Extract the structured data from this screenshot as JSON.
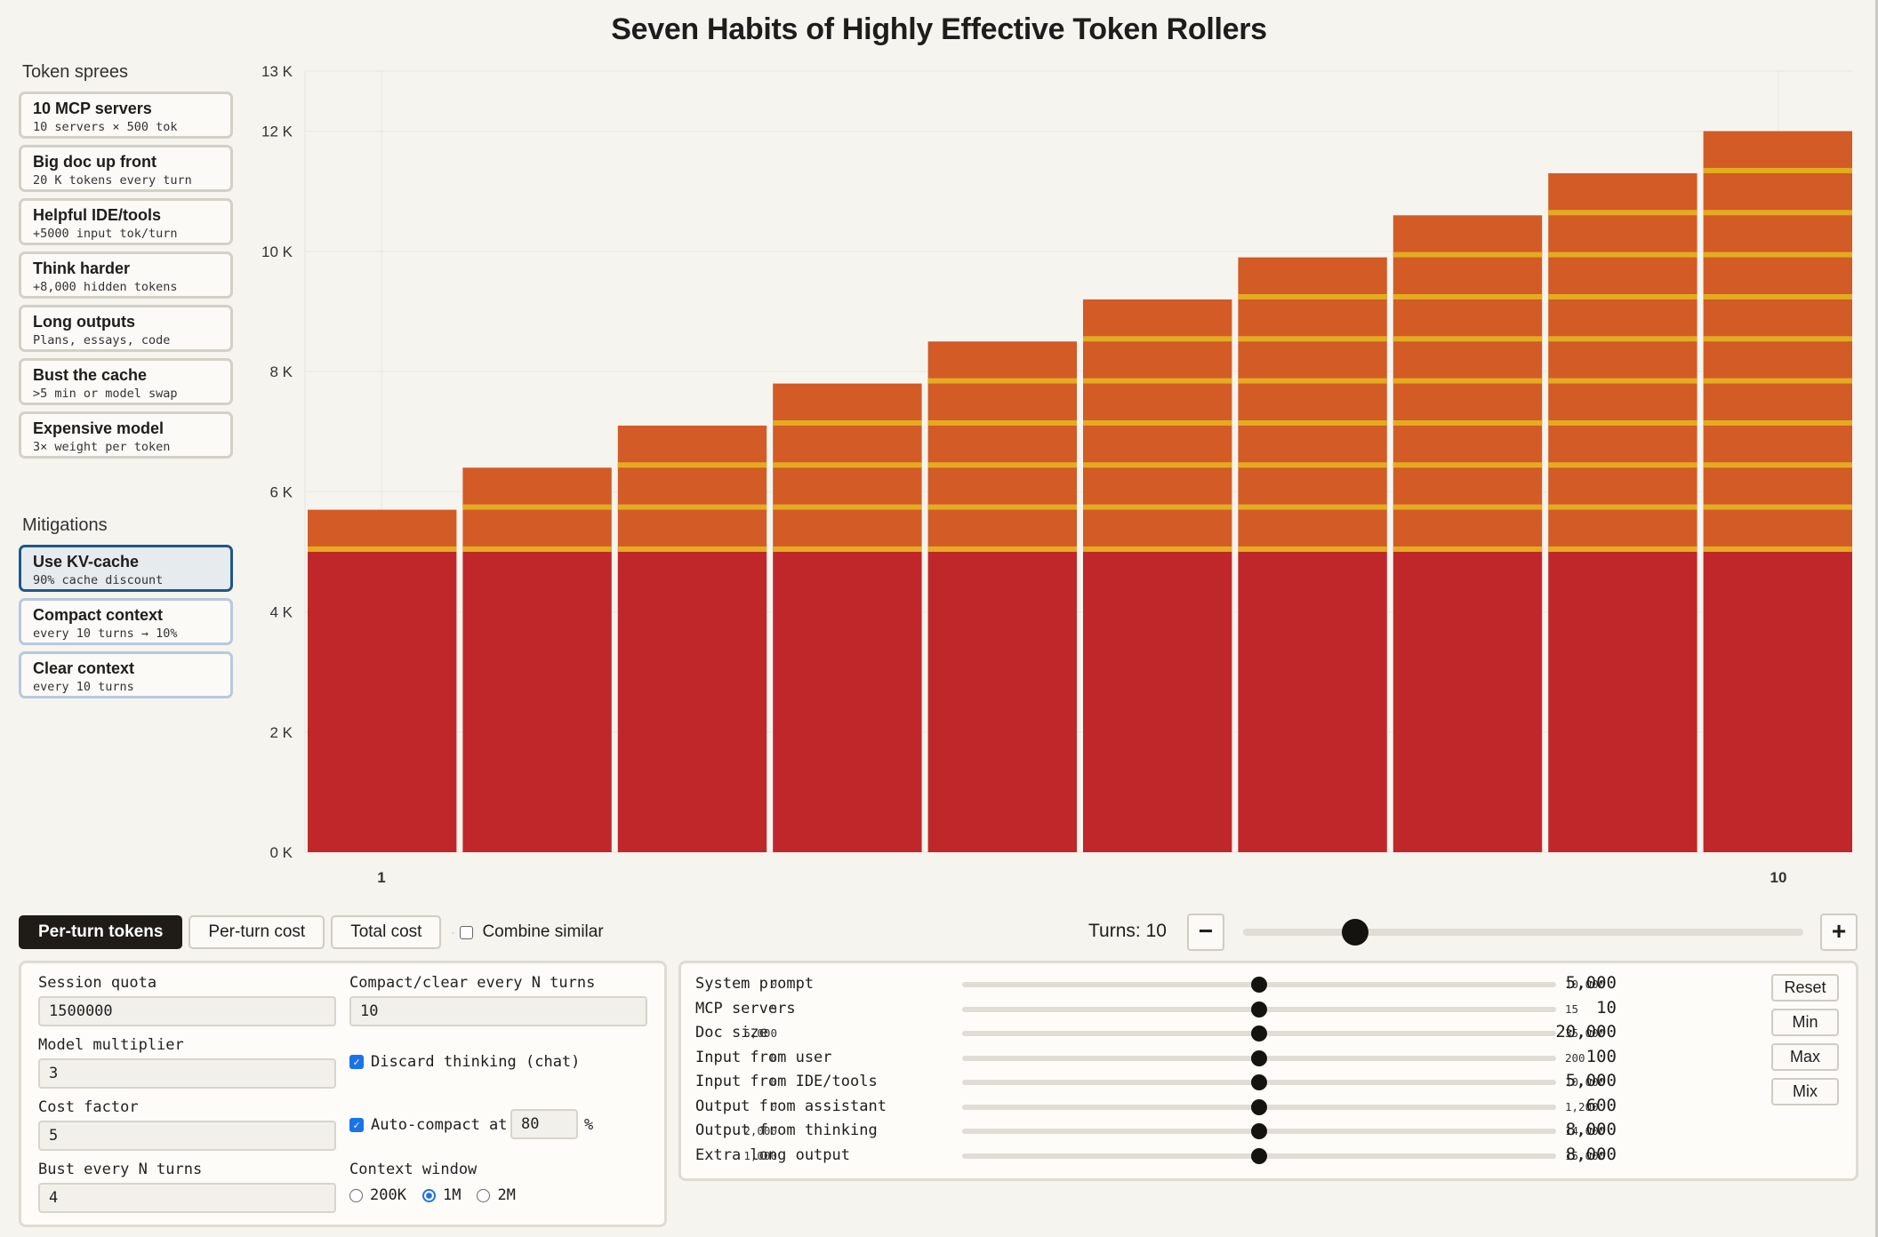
{
  "title": "Seven Habits of Highly Effective Token Rollers",
  "sidebar": {
    "sprees_heading": "Token sprees",
    "sprees": [
      {
        "title": "10 MCP servers",
        "subtitle": "10 servers × 500 tok"
      },
      {
        "title": "Big doc up front",
        "subtitle": "20 K tokens every turn"
      },
      {
        "title": "Helpful IDE/tools",
        "subtitle": "+5000 input tok/turn"
      },
      {
        "title": "Think harder",
        "subtitle": "+8,000 hidden tokens"
      },
      {
        "title": "Long outputs",
        "subtitle": "Plans, essays, code"
      },
      {
        "title": "Bust the cache",
        "subtitle": ">5 min or model swap"
      },
      {
        "title": "Expensive model",
        "subtitle": "3× weight per token"
      }
    ],
    "mitigations_heading": "Mitigations",
    "mitigations": [
      {
        "title": "Use KV-cache",
        "subtitle": "90% cache discount",
        "active": true
      },
      {
        "title": "Compact context",
        "subtitle": "every 10 turns → 10%",
        "active": false
      },
      {
        "title": "Clear context",
        "subtitle": "every 10 turns",
        "active": false
      }
    ]
  },
  "chart_data": {
    "type": "bar",
    "stacked": true,
    "categories": [
      "1",
      "2",
      "3",
      "4",
      "5",
      "6",
      "7",
      "8",
      "9",
      "10"
    ],
    "x_tick_labels": [
      "1",
      "10"
    ],
    "y_tick_labels": [
      "0 K",
      "2 K",
      "4 K",
      "6 K",
      "8 K",
      "10 K",
      "12 K",
      "13 K"
    ],
    "y_ticks": [
      0,
      2000,
      4000,
      6000,
      8000,
      10000,
      12000,
      13000
    ],
    "ylim": [
      0,
      13000
    ],
    "series": [
      {
        "values": [
          5000,
          5000,
          5000,
          5000,
          5000,
          5000,
          5000,
          5000,
          5000,
          5000
        ]
      },
      {
        "values": [
          700,
          1400,
          2100,
          2800,
          3500,
          4200,
          4900,
          5600,
          6300,
          7000
        ]
      }
    ],
    "colors": {
      "base": "#c0272a",
      "growth": "#d25b26",
      "separator": "#e3ac20",
      "grid": "#ebe9e3"
    },
    "grid": true
  },
  "controls": {
    "tabs": [
      {
        "label": "Per-turn tokens",
        "active": true
      },
      {
        "label": "Per-turn cost",
        "active": false
      },
      {
        "label": "Total cost",
        "active": false
      }
    ],
    "separator": "·",
    "combine_label": "Combine similar",
    "combine_checked": false,
    "turns_label": "Turns: 10",
    "turns": 10,
    "turns_fraction": 0.2,
    "minus": "−",
    "plus": "+"
  },
  "settings": {
    "session_quota_label": "Session quota",
    "session_quota": "1500000",
    "compact_every_label": "Compact/clear every N turns",
    "compact_every": "10",
    "model_multiplier_label": "Model multiplier",
    "model_multiplier": "3",
    "discard_thinking_label": "Discard thinking (chat)",
    "discard_thinking": true,
    "cost_factor_label": "Cost factor",
    "cost_factor": "5",
    "auto_compact_label": "Auto-compact at",
    "auto_compact_value": "80",
    "auto_compact_unit": "%",
    "auto_compact": true,
    "bust_every_label": "Bust every N turns",
    "bust_every": "4",
    "context_window_label": "Context window",
    "context_options": [
      {
        "label": "200K",
        "selected": false
      },
      {
        "label": "1M",
        "selected": true
      },
      {
        "label": "2M",
        "selected": false
      }
    ]
  },
  "sliders": [
    {
      "name": "System prompt",
      "min": "0",
      "max": "10,000",
      "value": "5,000",
      "fraction": 0.5
    },
    {
      "name": "MCP servers",
      "min": "5",
      "max": "15",
      "value": "10",
      "fraction": 0.5
    },
    {
      "name": "Doc size",
      "min": "5,000",
      "max": "35,000",
      "value": "20,000",
      "fraction": 0.5
    },
    {
      "name": "Input from user",
      "min": "0",
      "max": "200",
      "value": "100",
      "fraction": 0.5
    },
    {
      "name": "Input from IDE/tools",
      "min": "0",
      "max": "10,000",
      "value": "5,000",
      "fraction": 0.5
    },
    {
      "name": "Output from assistant",
      "min": "0",
      "max": "1,200",
      "value": "600",
      "fraction": 0.5
    },
    {
      "name": "Output from thinking",
      "min": "2,000",
      "max": "14,000",
      "value": "8,000",
      "fraction": 0.5
    },
    {
      "name": "Extra long output",
      "min": "1,000",
      "max": "15,000",
      "value": "8,000",
      "fraction": 0.5
    }
  ],
  "slider_buttons": {
    "reset": "Reset",
    "min": "Min",
    "max": "Max",
    "mix": "Mix"
  }
}
